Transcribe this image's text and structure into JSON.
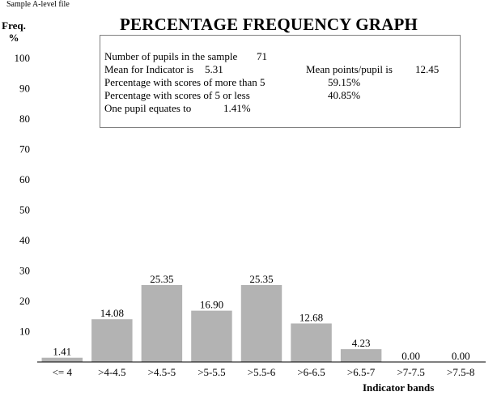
{
  "header": {
    "source_label": "Sample A-level file",
    "title": "PERCENTAGE FREQUENCY GRAPH",
    "ylabel_line1": "Freq.",
    "ylabel_line2": "%"
  },
  "stats": {
    "pupils_label": "Number of pupils in the sample",
    "pupils_value": "71",
    "mean_label": "Mean for Indicator is",
    "mean_value": "5.31",
    "mean_points_label": "Mean points/pupil is",
    "mean_points_value": "12.45",
    "above_label": "Percentage with scores of more than 5",
    "above_value": "59.15%",
    "below_label": "Percentage with scores of 5 or less",
    "below_value": "40.85%",
    "equates_label": "One pupil equates to",
    "equates_value": "1.41%"
  },
  "chart_data": {
    "type": "bar",
    "title": "PERCENTAGE FREQUENCY GRAPH",
    "xlabel": "Indicator bands",
    "ylabel": "Freq. %",
    "ylim": [
      0,
      100
    ],
    "yticks": [
      10,
      20,
      30,
      40,
      50,
      60,
      70,
      80,
      90,
      100
    ],
    "categories": [
      "<= 4",
      ">4-4.5",
      ">4.5-5",
      ">5-5.5",
      ">5.5-6",
      ">6-6.5",
      ">6.5-7",
      ">7-7.5",
      ">7.5-8"
    ],
    "values": [
      1.41,
      14.08,
      25.35,
      16.9,
      25.35,
      12.68,
      4.23,
      0.0,
      0.0
    ],
    "value_labels": [
      "1.41",
      "14.08",
      "25.35",
      "16.90",
      "25.35",
      "12.68",
      "4.23",
      "0.00",
      "0.00"
    ],
    "bar_color": "#b3b3b3",
    "grid": false
  }
}
